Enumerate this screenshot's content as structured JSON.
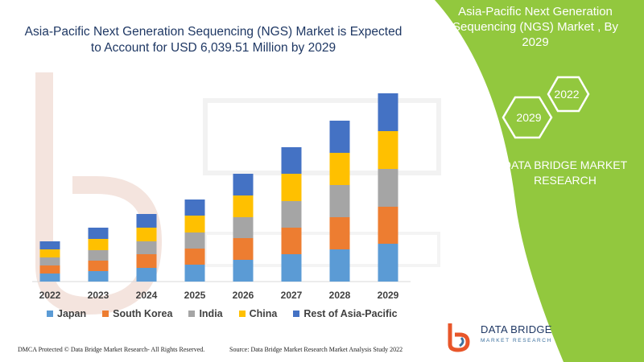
{
  "chart_data": {
    "type": "bar",
    "stacked": true,
    "title": "Asia-Pacific Next Generation Sequencing (NGS) Market is Expected to Account for USD 6,039.51 Million by 2029",
    "categories": [
      "2022",
      "2023",
      "2024",
      "2025",
      "2026",
      "2027",
      "2028",
      "2029"
    ],
    "series": [
      {
        "name": "Japan",
        "color": "#5b9bd5",
        "values": [
          10,
          13,
          17,
          21,
          27,
          34,
          40,
          47
        ]
      },
      {
        "name": "South Korea",
        "color": "#ed7d31",
        "values": [
          10,
          13,
          17,
          20,
          27,
          33,
          40,
          46
        ]
      },
      {
        "name": "India",
        "color": "#a5a5a5",
        "values": [
          10,
          13,
          16,
          20,
          26,
          33,
          40,
          47
        ]
      },
      {
        "name": "China",
        "color": "#ffc000",
        "values": [
          10,
          14,
          17,
          21,
          27,
          34,
          40,
          47
        ]
      },
      {
        "name": "Rest of Asia-Pacific",
        "color": "#4472c4",
        "values": [
          10,
          14,
          17,
          20,
          27,
          33,
          40,
          47
        ]
      }
    ],
    "ylim": [
      0,
      240
    ],
    "xlabel": "",
    "ylabel": "",
    "grid": false,
    "legend_position": "bottom"
  },
  "panel": {
    "title": "Asia-Pacific Next Generation Sequencing (NGS) Market , By 2029",
    "hex_labels": [
      "2022",
      "2029"
    ],
    "company": "DATA BRIDGE MARKET RESEARCH",
    "panel_color": "#92c83e"
  },
  "logo": {
    "name": "DATA BRIDGE",
    "subtitle": "MARKET RESEARCH"
  },
  "footer": {
    "left": "DMCA Protected © Data Bridge Market Research- All Rights Reserved.",
    "right": "Source: Data Bridge Market Research Market Analysis Study 2022"
  }
}
